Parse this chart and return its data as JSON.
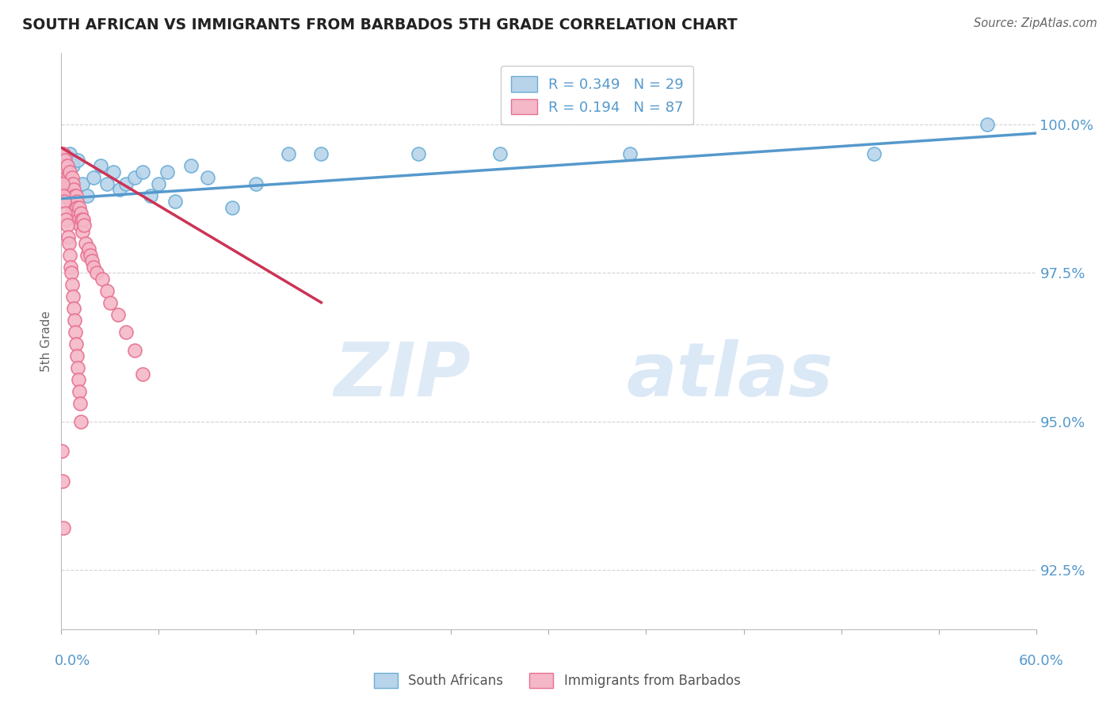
{
  "title": "SOUTH AFRICAN VS IMMIGRANTS FROM BARBADOS 5TH GRADE CORRELATION CHART",
  "source": "Source: ZipAtlas.com",
  "ylabel_label": "5th Grade",
  "xlim": [
    0.0,
    60.0
  ],
  "ylim": [
    91.5,
    101.2
  ],
  "yticks": [
    92.5,
    95.0,
    97.5,
    100.0
  ],
  "xticks": [
    0.0,
    6.0,
    12.0,
    18.0,
    24.0,
    30.0,
    36.0,
    42.0,
    48.0,
    54.0,
    60.0
  ],
  "R_blue": 0.349,
  "N_blue": 29,
  "R_pink": 0.194,
  "N_pink": 87,
  "blue_color": "#b8d4ea",
  "pink_color": "#f4b8c8",
  "blue_edge_color": "#6aaed6",
  "pink_edge_color": "#e87090",
  "blue_line_color": "#5599cc",
  "pink_line_color": "#cc3355",
  "legend_blue_label": "South Africans",
  "legend_pink_label": "Immigrants from Barbados",
  "watermark_zip": "ZIP",
  "watermark_atlas": "atlas",
  "blue_points_x": [
    0.3,
    0.5,
    0.7,
    1.0,
    1.3,
    1.6,
    2.0,
    2.4,
    2.8,
    3.2,
    3.6,
    4.0,
    4.5,
    5.0,
    5.5,
    6.0,
    6.5,
    7.0,
    8.0,
    9.0,
    10.5,
    12.0,
    14.0,
    16.0,
    22.0,
    27.0,
    35.0,
    50.0,
    57.0
  ],
  "blue_points_y": [
    99.2,
    99.5,
    99.3,
    99.4,
    99.0,
    98.8,
    99.1,
    99.3,
    99.0,
    99.2,
    98.9,
    99.0,
    99.1,
    99.2,
    98.8,
    99.0,
    99.2,
    98.7,
    99.3,
    99.1,
    98.6,
    99.0,
    99.5,
    99.5,
    99.5,
    99.5,
    99.5,
    99.5,
    100.0
  ],
  "pink_points_x": [
    0.05,
    0.08,
    0.1,
    0.12,
    0.15,
    0.18,
    0.2,
    0.22,
    0.25,
    0.28,
    0.3,
    0.32,
    0.35,
    0.38,
    0.4,
    0.42,
    0.45,
    0.48,
    0.5,
    0.52,
    0.55,
    0.58,
    0.6,
    0.62,
    0.65,
    0.68,
    0.7,
    0.72,
    0.75,
    0.78,
    0.8,
    0.82,
    0.85,
    0.88,
    0.9,
    0.92,
    0.95,
    0.98,
    1.0,
    1.05,
    1.1,
    1.15,
    1.2,
    1.25,
    1.3,
    1.35,
    1.4,
    1.5,
    1.6,
    1.7,
    1.8,
    1.9,
    2.0,
    2.2,
    2.5,
    2.8,
    3.0,
    3.5,
    4.0,
    4.5,
    5.0,
    0.1,
    0.15,
    0.2,
    0.25,
    0.3,
    0.35,
    0.4,
    0.45,
    0.5,
    0.55,
    0.6,
    0.65,
    0.7,
    0.75,
    0.8,
    0.85,
    0.9,
    0.95,
    1.0,
    1.05,
    1.1,
    1.15,
    1.2,
    0.05,
    0.08,
    0.12
  ],
  "pink_points_y": [
    99.5,
    99.4,
    99.3,
    99.5,
    99.2,
    99.3,
    99.1,
    99.4,
    99.0,
    99.2,
    99.1,
    98.9,
    99.3,
    99.0,
    98.8,
    99.1,
    98.9,
    99.0,
    98.8,
    99.2,
    98.7,
    98.9,
    99.0,
    98.8,
    99.1,
    98.6,
    98.8,
    99.0,
    98.7,
    98.9,
    98.5,
    98.8,
    98.7,
    98.6,
    98.8,
    98.5,
    98.7,
    98.6,
    98.5,
    98.4,
    98.6,
    98.3,
    98.5,
    98.4,
    98.2,
    98.4,
    98.3,
    98.0,
    97.8,
    97.9,
    97.8,
    97.7,
    97.6,
    97.5,
    97.4,
    97.2,
    97.0,
    96.8,
    96.5,
    96.2,
    95.8,
    99.0,
    98.8,
    98.7,
    98.5,
    98.4,
    98.3,
    98.1,
    98.0,
    97.8,
    97.6,
    97.5,
    97.3,
    97.1,
    96.9,
    96.7,
    96.5,
    96.3,
    96.1,
    95.9,
    95.7,
    95.5,
    95.3,
    95.0,
    94.5,
    94.0,
    93.2
  ],
  "blue_trendline_x": [
    0.05,
    60.0
  ],
  "blue_trendline_y": [
    98.75,
    99.85
  ],
  "pink_trendline_x": [
    0.05,
    16.0
  ],
  "pink_trendline_y": [
    99.6,
    97.0
  ]
}
